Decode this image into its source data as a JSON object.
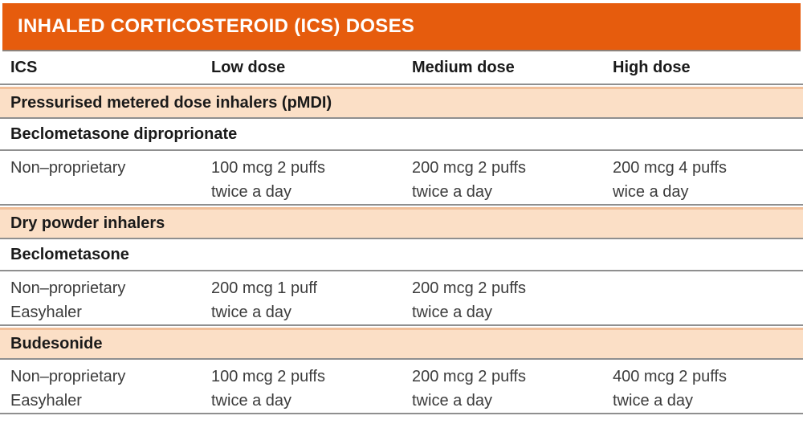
{
  "title": "INHALED CORTICOSTEROID (ICS) DOSES",
  "colors": {
    "accent_orange": "#E65C0D",
    "section_peach": "#FBDFC6",
    "section_edge_salmon": "#F1BF99",
    "rule_gray": "#8F8F8F",
    "heading_text": "#1A1A1A",
    "body_text": "#3C3C3C",
    "title_text": "#FFFFFF"
  },
  "table": {
    "columns": [
      "ICS",
      "Low dose",
      "Medium dose",
      "High dose"
    ],
    "rows": [
      {
        "type": "section",
        "label": "Pressurised metered dose inhalers (pMDI)"
      },
      {
        "type": "subheader",
        "label": "Beclometasone diproprionate"
      },
      {
        "type": "data",
        "cells": [
          "Non–proprietary",
          "100 mcg 2 puffs\ntwice a day",
          "200 mcg 2 puffs\ntwice a day",
          "200 mcg 4 puffs\nwice a day"
        ]
      },
      {
        "type": "section",
        "label": "Dry powder inhalers"
      },
      {
        "type": "subheader",
        "label": "Beclometasone"
      },
      {
        "type": "data",
        "cells": [
          "Non–proprietary\nEasyhaler",
          "200 mcg 1 puff\ntwice a day",
          "200 mcg 2 puffs\ntwice a day",
          ""
        ]
      },
      {
        "type": "section",
        "label": "Budesonide"
      },
      {
        "type": "data",
        "cells": [
          "Non–proprietary\nEasyhaler",
          "100 mcg 2 puffs\ntwice a day",
          "200 mcg 2 puffs\ntwice a day",
          "400 mcg 2 puffs\ntwice a day"
        ]
      }
    ]
  }
}
